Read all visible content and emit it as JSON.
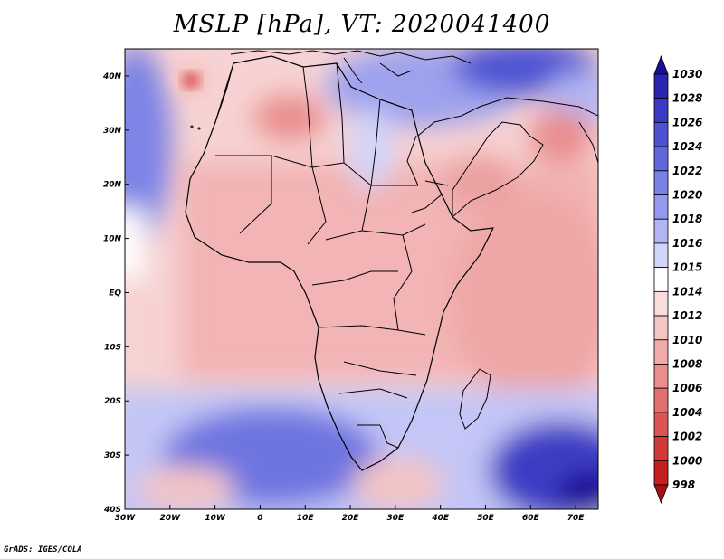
{
  "title": "MSLP [hPa], VT: 2020041400",
  "credit": "GrADS: IGES/COLA",
  "map": {
    "variable": "Mean sea level pressure",
    "units": "hPa",
    "valid_time": "2020041400",
    "lon_range": [
      -30,
      75
    ],
    "lat_range": [
      -40,
      45
    ],
    "lon_ticks": [
      "30W",
      "20W",
      "10W",
      "0",
      "10E",
      "20E",
      "30E",
      "40E",
      "50E",
      "60E",
      "70E"
    ],
    "lat_ticks": [
      "40N",
      "30N",
      "20N",
      "10N",
      "EQ",
      "10S",
      "20S",
      "30S",
      "40S"
    ]
  },
  "colorbar": {
    "levels": [
      "1030",
      "1028",
      "1026",
      "1024",
      "1022",
      "1020",
      "1018",
      "1016",
      "1015",
      "1014",
      "1012",
      "1010",
      "1008",
      "1006",
      "1004",
      "1002",
      "1000",
      "998"
    ],
    "colors": [
      "#1c0f96",
      "#2a24b0",
      "#3b3ac4",
      "#4e52d2",
      "#6268dc",
      "#7a80e6",
      "#9499ee",
      "#b1b5f4",
      "#d2d5fa",
      "#ffffff",
      "#f9dcdc",
      "#f5c5c5",
      "#f0aaaa",
      "#e98d8d",
      "#e37070",
      "#dc5454",
      "#d43838",
      "#c41e1e",
      "#a80f0f"
    ]
  }
}
